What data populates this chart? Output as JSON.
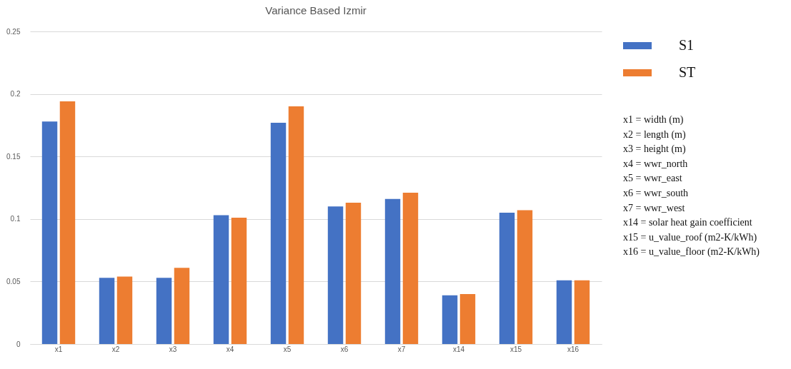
{
  "chart_data": {
    "type": "bar",
    "title": "Variance Based Izmir",
    "categories": [
      "x1",
      "x2",
      "x3",
      "x4",
      "x5",
      "x6",
      "x7",
      "x14",
      "x15",
      "x16"
    ],
    "series": [
      {
        "name": "S1",
        "color": "#4472c4",
        "values": [
          0.178,
          0.053,
          0.053,
          0.103,
          0.177,
          0.11,
          0.116,
          0.039,
          0.105,
          0.051
        ]
      },
      {
        "name": "ST",
        "color": "#ed7d31",
        "values": [
          0.194,
          0.054,
          0.061,
          0.101,
          0.19,
          0.113,
          0.121,
          0.04,
          0.107,
          0.051
        ]
      }
    ],
    "ylim": [
      0,
      0.25
    ],
    "yticks": [
      0,
      0.05,
      0.1,
      0.15,
      0.2,
      0.25
    ],
    "grid": "y",
    "legend": "top right",
    "annotations": [
      "x1 = width (m)",
      "x2 = length (m)",
      "x3 = height (m)",
      "x4 = wwr_north",
      "x5 = wwr_east",
      "x6 = wwr_south",
      "x7 = wwr_west",
      "x14 = solar heat gain coefficient",
      "x15 = u_value_roof (m2-K/kWh)",
      "x16 = u_value_floor (m2-K/kWh)"
    ]
  }
}
